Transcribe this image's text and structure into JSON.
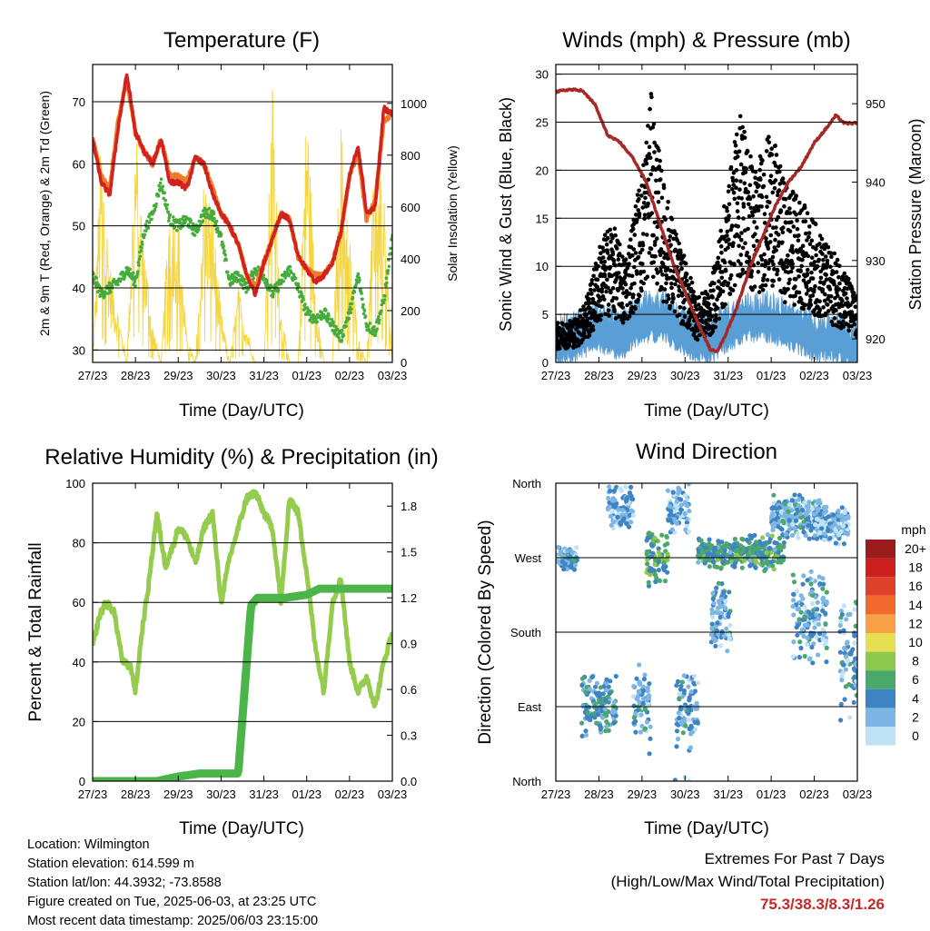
{
  "colors": {
    "red": "#d0231f",
    "orange": "#f07a2c",
    "green": "#45ac3c",
    "yellow": "#f5d642",
    "black": "#000000",
    "blue": "#5a9ed6",
    "maroon": "#a52a26",
    "rh_light": "#96cc4e",
    "precip_green": "#4cb54a",
    "extremes_text": "#c8282a"
  },
  "info": {
    "location": "Location: Wilmington",
    "elevation": "Station elevation: 614.599 m",
    "latlon": "Station lat/lon: 44.3932; -73.8588",
    "created": "Figure created on Tue, 2025-06-03, at 23:25 UTC",
    "recent": "Most recent data timestamp: 2025/06/03 23:15:00"
  },
  "extremes": {
    "line1": "Extremes For Past 7 Days",
    "line2": "(High/Low/Max Wind/Total Precipitation)",
    "values": "75.3/38.3/8.3/1.26"
  },
  "chart_data": [
    {
      "type": "line",
      "title": "Temperature (F)",
      "xlabel": "Time (Day/UTC)",
      "ylabel": "2m & 9m T (Red, Orange) & 2m Td (Green)",
      "ylabel_right": "Solar Insolation (Yellow)",
      "x_ticks": [
        "27/23",
        "28/23",
        "29/23",
        "30/23",
        "31/23",
        "01/23",
        "02/23",
        "03/23"
      ],
      "ylim": [
        28,
        76
      ],
      "y_ticks": [
        30,
        40,
        50,
        60,
        70
      ],
      "grid_lines": [
        30,
        40,
        50,
        60,
        70
      ],
      "ylim_right": [
        0,
        1150
      ],
      "y_ticks_right": [
        0,
        200,
        400,
        600,
        800,
        1000
      ],
      "x": [
        0,
        0.2,
        0.4,
        0.6,
        0.8,
        1.0,
        1.2,
        1.4,
        1.6,
        1.8,
        2.0,
        2.2,
        2.4,
        2.6,
        2.8,
        3.0,
        3.2,
        3.4,
        3.6,
        3.8,
        4.0,
        4.2,
        4.4,
        4.6,
        4.8,
        5.0,
        5.2,
        5.4,
        5.6,
        5.8,
        6.0,
        6.2,
        6.4,
        6.6,
        6.8,
        7.0
      ],
      "series": [
        {
          "name": "2m T",
          "color": "red",
          "values": [
            64,
            57,
            55,
            66,
            74.5,
            65,
            62,
            60,
            64,
            57,
            57,
            56,
            61,
            60,
            55,
            52,
            50,
            47,
            42,
            39,
            44,
            48,
            52,
            51,
            45,
            43,
            41,
            42,
            44,
            49,
            58,
            63,
            52,
            53,
            69,
            68
          ]
        },
        {
          "name": "9m T",
          "color": "orange",
          "values": [
            64,
            58,
            56,
            67,
            73.5,
            65,
            62,
            60,
            64,
            58,
            58,
            57,
            61,
            60,
            56,
            52,
            50,
            47,
            42,
            40,
            44,
            48,
            52,
            51,
            45,
            43,
            42,
            42,
            44,
            49,
            58,
            62,
            51,
            54,
            67,
            68
          ]
        },
        {
          "name": "2m Td",
          "color": "green",
          "values": [
            42,
            39,
            40,
            41,
            43,
            41,
            49,
            52,
            57,
            51,
            50,
            51,
            49,
            52,
            52,
            48,
            41,
            42,
            40,
            43,
            42,
            39,
            41,
            43,
            40,
            36,
            35,
            36,
            34,
            32,
            36,
            42,
            34,
            33,
            38,
            48
          ]
        },
        {
          "name": "Solar Insolation",
          "color": "yellow",
          "axis": "right",
          "values": [
            0,
            900,
            400,
            200,
            0,
            950,
            500,
            150,
            0,
            700,
            600,
            100,
            0,
            750,
            600,
            200,
            0,
            300,
            150,
            0,
            0,
            1100,
            200,
            0,
            0,
            1080,
            300,
            0,
            0,
            950,
            500,
            100,
            0,
            900,
            650,
            0
          ]
        }
      ]
    },
    {
      "type": "scatter",
      "title": "Winds (mph) & Pressure (mb)",
      "xlabel": "Time (Day/UTC)",
      "ylabel": "Sonic Wind & Gust (Blue, Black)",
      "ylabel_right": "Station Pressure (Maroon)",
      "x_ticks": [
        "27/23",
        "28/23",
        "29/23",
        "30/23",
        "31/23",
        "01/23",
        "02/23",
        "03/23"
      ],
      "ylim": [
        0,
        31
      ],
      "y_ticks": [
        0,
        5,
        10,
        15,
        20,
        25,
        30
      ],
      "grid_lines": [
        5,
        10,
        15,
        20,
        25,
        30
      ],
      "ylim_right": [
        917,
        955
      ],
      "y_ticks_right": [
        920,
        930,
        940,
        950
      ],
      "pressure": {
        "name": "Station Pressure",
        "color": "maroon",
        "x": [
          0,
          0.3,
          0.6,
          0.9,
          1.2,
          1.5,
          1.8,
          2.1,
          2.4,
          2.7,
          3.0,
          3.3,
          3.6,
          3.75,
          3.9,
          4.2,
          4.5,
          4.8,
          5.1,
          5.4,
          5.7,
          6.0,
          6.3,
          6.5,
          6.7,
          7.0
        ],
        "values": [
          951.5,
          951.8,
          951.7,
          950,
          946,
          945,
          943,
          940,
          935,
          930,
          926,
          922,
          918.5,
          918.5,
          920,
          924,
          929,
          933,
          937,
          940,
          942,
          945,
          947,
          948.5,
          947.5,
          947.5
        ]
      },
      "wind": {
        "name": "Sonic Wind",
        "color": "blue",
        "x": [
          0,
          0.5,
          1.0,
          1.5,
          2.0,
          2.5,
          3.0,
          3.5,
          4.0,
          4.5,
          5.0,
          5.5,
          6.0,
          6.5,
          7.0
        ],
        "values": [
          2.5,
          3,
          4,
          3,
          5,
          5,
          3.5,
          2.5,
          4,
          5,
          5,
          4,
          3,
          3,
          2
        ]
      },
      "gust": {
        "name": "Gust",
        "color": "black",
        "x": [
          0,
          0.5,
          0.8,
          1.0,
          1.3,
          1.6,
          2.0,
          2.2,
          2.5,
          2.8,
          3.0,
          3.3,
          3.6,
          4.0,
          4.3,
          4.6,
          5.0,
          5.3,
          5.6,
          6.0,
          6.3,
          6.6,
          7.0
        ],
        "values": [
          3,
          3.5,
          6,
          9,
          11,
          8,
          15,
          21,
          14,
          10,
          8,
          5,
          6,
          14,
          20,
          15,
          18,
          14,
          13,
          11,
          9,
          8,
          5
        ]
      }
    },
    {
      "type": "line",
      "title": "Relative Humidity (%) & Precipitation (in)",
      "xlabel": "Time (Day/UTC)",
      "ylabel": "Percent & Total Rainfall",
      "x_ticks": [
        "27/23",
        "28/23",
        "29/23",
        "30/23",
        "31/23",
        "01/23",
        "02/23",
        "03/23"
      ],
      "ylim": [
        0,
        100
      ],
      "y_ticks": [
        0,
        20,
        40,
        60,
        80,
        100
      ],
      "grid_lines": [
        20,
        40,
        60,
        80
      ],
      "ylim_right": [
        0,
        1.95
      ],
      "y_ticks_right": [
        "0.0",
        "0.3",
        "0.6",
        "0.9",
        "1.2",
        "1.5",
        "1.8"
      ],
      "x": [
        0,
        0.15,
        0.3,
        0.5,
        0.7,
        0.9,
        1.0,
        1.15,
        1.3,
        1.5,
        1.7,
        1.9,
        2.0,
        2.2,
        2.4,
        2.6,
        2.8,
        3.0,
        3.2,
        3.4,
        3.6,
        3.8,
        4.0,
        4.2,
        4.4,
        4.6,
        4.8,
        5.0,
        5.2,
        5.4,
        5.6,
        5.8,
        6.0,
        6.2,
        6.4,
        6.6,
        6.8,
        7.0
      ],
      "series": [
        {
          "name": "Relative Humidity",
          "color": "rh_light",
          "values": [
            45,
            55,
            60,
            57,
            40,
            38,
            30,
            50,
            65,
            90,
            72,
            80,
            85,
            82,
            73,
            85,
            90,
            60,
            75,
            85,
            95,
            97,
            90,
            85,
            60,
            95,
            90,
            70,
            45,
            30,
            60,
            68,
            40,
            30,
            35,
            25,
            40,
            50
          ]
        },
        {
          "name": "Total Precipitation",
          "color": "precip_green",
          "axis": "right",
          "x": [
            0,
            1.5,
            2.0,
            2.5,
            3.0,
            3.4,
            3.55,
            3.7,
            3.85,
            4.0,
            4.5,
            5.0,
            5.3,
            6.0,
            7.0
          ],
          "values": [
            0,
            0,
            0.03,
            0.05,
            0.05,
            0.05,
            0.6,
            1.15,
            1.2,
            1.2,
            1.2,
            1.22,
            1.26,
            1.26,
            1.26
          ]
        }
      ]
    },
    {
      "type": "scatter",
      "title": "Wind Direction",
      "xlabel": "Time (Day/UTC)",
      "ylabel": "Direction (Colored By Speed)",
      "x_ticks": [
        "27/23",
        "28/23",
        "29/23",
        "30/23",
        "31/23",
        "01/23",
        "02/23",
        "03/23"
      ],
      "y_ticks": [
        "North",
        "East",
        "South",
        "West",
        "North"
      ],
      "ylim": [
        0,
        360
      ],
      "legend_title": "mph",
      "legend_labels": [
        "20+",
        "18",
        "16",
        "14",
        "12",
        "10",
        "8",
        "6",
        "4",
        "2",
        "0"
      ],
      "legend_colors": [
        "#9b1c1c",
        "#cc1f1f",
        "#e0412b",
        "#f06a2e",
        "#f7a046",
        "#e8de52",
        "#8cc84b",
        "#4aa86a",
        "#3e84c4",
        "#7db6e3",
        "#bfe2f5"
      ],
      "clusters": [
        {
          "x0": 0.0,
          "x1": 0.5,
          "center": 270,
          "spread": 15,
          "speed": 3
        },
        {
          "x0": 0.6,
          "x1": 1.4,
          "center": 90,
          "spread": 40,
          "speed": 4
        },
        {
          "x0": 1.2,
          "x1": 1.8,
          "center": 330,
          "spread": 30,
          "speed": 2
        },
        {
          "x0": 1.8,
          "x1": 2.2,
          "center": 90,
          "spread": 60,
          "speed": 3
        },
        {
          "x0": 2.1,
          "x1": 2.6,
          "center": 270,
          "spread": 35,
          "speed": 6
        },
        {
          "x0": 2.6,
          "x1": 3.1,
          "center": 330,
          "spread": 40,
          "speed": 2
        },
        {
          "x0": 2.8,
          "x1": 3.3,
          "center": 90,
          "spread": 60,
          "speed": 3
        },
        {
          "x0": 3.3,
          "x1": 4.3,
          "center": 275,
          "spread": 20,
          "speed": 5
        },
        {
          "x0": 3.6,
          "x1": 4.1,
          "center": 200,
          "spread": 50,
          "speed": 3
        },
        {
          "x0": 4.3,
          "x1": 5.3,
          "center": 275,
          "spread": 25,
          "speed": 5
        },
        {
          "x0": 5.0,
          "x1": 6.2,
          "center": 320,
          "spread": 30,
          "speed": 3
        },
        {
          "x0": 5.5,
          "x1": 6.3,
          "center": 200,
          "spread": 60,
          "speed": 3
        },
        {
          "x0": 6.0,
          "x1": 6.8,
          "center": 310,
          "spread": 25,
          "speed": 2
        },
        {
          "x0": 6.6,
          "x1": 7.0,
          "center": 150,
          "spread": 80,
          "speed": 3
        }
      ]
    }
  ]
}
